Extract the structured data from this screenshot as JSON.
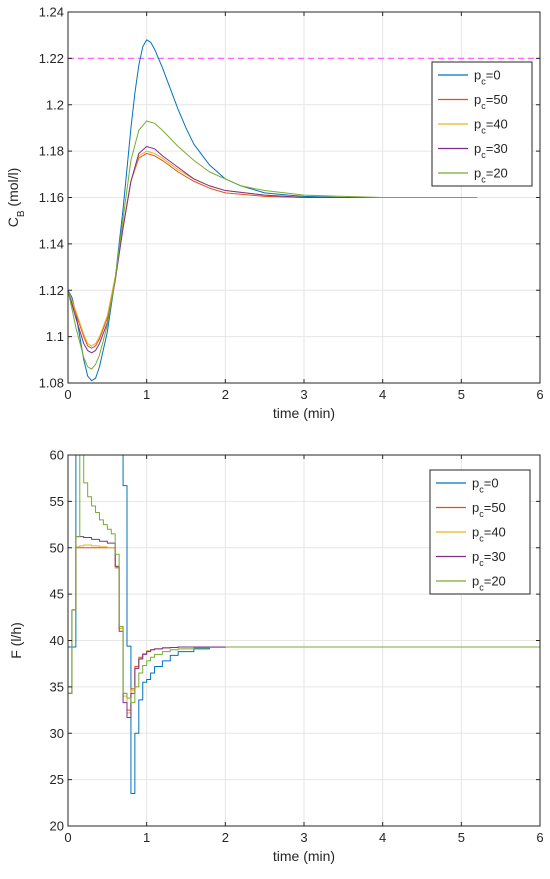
{
  "chart_data": [
    {
      "type": "line",
      "xlabel": "time (min)",
      "ylabel": {
        "base": "C",
        "sub": "B",
        "rest": " (mol/l)"
      },
      "xlim": [
        0,
        6
      ],
      "ylim": [
        1.08,
        1.24
      ],
      "xticks": [
        0,
        1,
        2,
        3,
        4,
        5,
        6
      ],
      "xticklabels": [
        "0",
        "1",
        "2",
        "3",
        "4",
        "5",
        "6"
      ],
      "yticks": [
        1.08,
        1.1,
        1.12,
        1.14,
        1.16,
        1.18,
        1.2,
        1.22,
        1.24
      ],
      "yticklabels": [
        "1.08",
        "1.1",
        "1.12",
        "1.14",
        "1.16",
        "1.18",
        "1.2",
        "1.22",
        "1.24"
      ],
      "grid": true,
      "legend_position": "top-right",
      "reference_line": {
        "y": 1.22,
        "color": "#ff66ff",
        "style": "dashed"
      },
      "series": [
        {
          "name": {
            "base": "p",
            "sub": "c",
            "rest": "=0"
          },
          "color": "#0072bd",
          "x": [
            0,
            0.05,
            0.1,
            0.15,
            0.2,
            0.25,
            0.3,
            0.35,
            0.4,
            0.5,
            0.6,
            0.7,
            0.8,
            0.85,
            0.9,
            0.95,
            1.0,
            1.05,
            1.1,
            1.2,
            1.3,
            1.4,
            1.5,
            1.6,
            1.8,
            2.0,
            2.2,
            2.5,
            2.8,
            3.0,
            3.5,
            4.0,
            4.5,
            5.0,
            5.2
          ],
          "y": [
            1.12,
            1.117,
            1.11,
            1.1,
            1.09,
            1.083,
            1.081,
            1.082,
            1.087,
            1.102,
            1.125,
            1.155,
            1.19,
            1.205,
            1.217,
            1.225,
            1.228,
            1.227,
            1.224,
            1.216,
            1.207,
            1.198,
            1.19,
            1.183,
            1.174,
            1.168,
            1.165,
            1.162,
            1.161,
            1.1605,
            1.16,
            1.16,
            1.16,
            1.16,
            1.16
          ]
        },
        {
          "name": {
            "base": "p",
            "sub": "c",
            "rest": "=50"
          },
          "color": "#d95319",
          "x": [
            0,
            0.1,
            0.2,
            0.25,
            0.3,
            0.35,
            0.4,
            0.5,
            0.6,
            0.7,
            0.8,
            0.9,
            1.0,
            1.1,
            1.2,
            1.4,
            1.6,
            1.8,
            2.0,
            2.5,
            3.0,
            4.0,
            5.0,
            5.2
          ],
          "y": [
            1.12,
            1.11,
            1.1,
            1.096,
            1.095,
            1.096,
            1.099,
            1.108,
            1.125,
            1.147,
            1.167,
            1.177,
            1.179,
            1.178,
            1.176,
            1.171,
            1.167,
            1.164,
            1.162,
            1.1605,
            1.16,
            1.16,
            1.16,
            1.16
          ]
        },
        {
          "name": {
            "base": "p",
            "sub": "c",
            "rest": "=40"
          },
          "color": "#edb120",
          "x": [
            0,
            0.1,
            0.2,
            0.25,
            0.3,
            0.35,
            0.4,
            0.5,
            0.6,
            0.7,
            0.8,
            0.9,
            1.0,
            1.1,
            1.2,
            1.4,
            1.6,
            1.8,
            2.0,
            2.5,
            3.0,
            4.0,
            5.0,
            5.2
          ],
          "y": [
            1.12,
            1.111,
            1.101,
            1.097,
            1.096,
            1.097,
            1.1,
            1.109,
            1.126,
            1.148,
            1.167,
            1.178,
            1.18,
            1.179,
            1.177,
            1.172,
            1.168,
            1.165,
            1.163,
            1.161,
            1.16,
            1.16,
            1.16,
            1.16
          ]
        },
        {
          "name": {
            "base": "p",
            "sub": "c",
            "rest": "=30"
          },
          "color": "#7e2f8e",
          "x": [
            0,
            0.1,
            0.2,
            0.25,
            0.3,
            0.35,
            0.4,
            0.5,
            0.6,
            0.7,
            0.8,
            0.9,
            1.0,
            1.1,
            1.2,
            1.4,
            1.6,
            1.8,
            2.0,
            2.5,
            3.0,
            4.0,
            5.0,
            5.2
          ],
          "y": [
            1.12,
            1.108,
            1.097,
            1.094,
            1.093,
            1.094,
            1.097,
            1.106,
            1.124,
            1.147,
            1.167,
            1.179,
            1.182,
            1.181,
            1.178,
            1.173,
            1.168,
            1.165,
            1.163,
            1.161,
            1.16,
            1.16,
            1.16,
            1.16
          ]
        },
        {
          "name": {
            "base": "p",
            "sub": "c",
            "rest": "=20"
          },
          "color": "#77ac30",
          "x": [
            0,
            0.1,
            0.2,
            0.25,
            0.3,
            0.35,
            0.4,
            0.5,
            0.6,
            0.7,
            0.8,
            0.9,
            1.0,
            1.1,
            1.2,
            1.4,
            1.6,
            1.8,
            2.0,
            2.2,
            2.5,
            3.0,
            3.5,
            4.0,
            5.0,
            5.2
          ],
          "y": [
            1.12,
            1.104,
            1.091,
            1.087,
            1.086,
            1.088,
            1.092,
            1.105,
            1.125,
            1.151,
            1.176,
            1.189,
            1.193,
            1.192,
            1.189,
            1.182,
            1.176,
            1.171,
            1.168,
            1.165,
            1.163,
            1.161,
            1.1605,
            1.16,
            1.16,
            1.16
          ]
        }
      ]
    },
    {
      "type": "line",
      "xlabel": "time (min)",
      "ylabel": {
        "base": "F (l/h)",
        "sub": "",
        "rest": ""
      },
      "xlim": [
        0,
        6
      ],
      "ylim": [
        20,
        60
      ],
      "xticks": [
        0,
        1,
        2,
        3,
        4,
        5,
        6
      ],
      "xticklabels": [
        "0",
        "1",
        "2",
        "3",
        "4",
        "5",
        "6"
      ],
      "yticks": [
        20,
        25,
        30,
        35,
        40,
        45,
        50,
        55,
        60
      ],
      "yticklabels": [
        "20",
        "25",
        "30",
        "35",
        "40",
        "45",
        "50",
        "55",
        "60"
      ],
      "grid": true,
      "legend_position": "top-right",
      "step": true,
      "series": [
        {
          "name": {
            "base": "p",
            "sub": "c",
            "rest": "=0"
          },
          "color": "#0072bd",
          "x": [
            0,
            0.05,
            0.1,
            0.15,
            0.2,
            0.3,
            0.4,
            0.5,
            0.6,
            0.65,
            0.7,
            0.75,
            0.8,
            0.85,
            0.9,
            0.95,
            1.0,
            1.05,
            1.1,
            1.2,
            1.3,
            1.4,
            1.6,
            1.8,
            2.0,
            2.5,
            6.0
          ],
          "y": [
            39.3,
            39.3,
            60,
            60,
            60,
            60,
            60,
            60,
            60,
            60,
            56.7,
            39.4,
            23.5,
            30.0,
            33.6,
            35.5,
            35.8,
            36.5,
            37.2,
            37.8,
            38.4,
            38.8,
            39.1,
            39.25,
            39.3,
            39.3,
            39.3
          ]
        },
        {
          "name": {
            "base": "p",
            "sub": "c",
            "rest": "=50"
          },
          "color": "#d95319",
          "x": [
            0,
            0.05,
            0.1,
            0.15,
            0.2,
            0.3,
            0.4,
            0.5,
            0.6,
            0.65,
            0.7,
            0.75,
            0.8,
            0.85,
            0.9,
            0.95,
            1.0,
            1.05,
            1.1,
            1.2,
            1.3,
            1.4,
            1.6,
            1.8,
            2.0,
            2.5,
            6.0
          ],
          "y": [
            34.3,
            43.3,
            50.0,
            50.0,
            50.0,
            50.0,
            50.0,
            50.0,
            47.9,
            41.5,
            34.3,
            32.5,
            34.8,
            37.2,
            38.2,
            38.6,
            38.9,
            39.0,
            39.1,
            39.2,
            39.25,
            39.3,
            39.3,
            39.3,
            39.3,
            39.3,
            39.3
          ]
        },
        {
          "name": {
            "base": "p",
            "sub": "c",
            "rest": "=40"
          },
          "color": "#edb120",
          "x": [
            0,
            0.05,
            0.1,
            0.15,
            0.2,
            0.3,
            0.4,
            0.5,
            0.6,
            0.65,
            0.7,
            0.75,
            0.8,
            0.85,
            0.9,
            0.95,
            1.0,
            1.05,
            1.1,
            1.2,
            1.3,
            1.4,
            1.6,
            1.8,
            2.0,
            2.5,
            6.0
          ],
          "y": [
            34.3,
            43.3,
            50.1,
            50.2,
            50.3,
            50.2,
            50.1,
            50.0,
            47.8,
            41.3,
            34.0,
            32.2,
            34.6,
            37.0,
            38.1,
            38.6,
            38.9,
            39.0,
            39.1,
            39.2,
            39.25,
            39.3,
            39.3,
            39.3,
            39.3,
            39.3,
            39.3
          ]
        },
        {
          "name": {
            "base": "p",
            "sub": "c",
            "rest": "=30"
          },
          "color": "#7e2f8e",
          "x": [
            0,
            0.05,
            0.1,
            0.15,
            0.2,
            0.3,
            0.4,
            0.5,
            0.6,
            0.65,
            0.7,
            0.75,
            0.8,
            0.85,
            0.9,
            0.95,
            1.0,
            1.05,
            1.1,
            1.2,
            1.3,
            1.4,
            1.6,
            1.8,
            2.0,
            2.5,
            6.0
          ],
          "y": [
            34.3,
            43.3,
            51.2,
            51.2,
            51.1,
            50.9,
            50.7,
            50.5,
            48.0,
            41.0,
            33.3,
            31.7,
            34.3,
            37.0,
            38.0,
            38.5,
            38.8,
            39.0,
            39.1,
            39.2,
            39.25,
            39.3,
            39.3,
            39.3,
            39.3,
            39.3,
            39.3
          ]
        },
        {
          "name": {
            "base": "p",
            "sub": "c",
            "rest": "=20"
          },
          "color": "#77ac30",
          "x": [
            0,
            0.05,
            0.1,
            0.15,
            0.2,
            0.25,
            0.3,
            0.35,
            0.4,
            0.45,
            0.5,
            0.55,
            0.6,
            0.65,
            0.7,
            0.75,
            0.8,
            0.85,
            0.9,
            0.95,
            1.0,
            1.05,
            1.1,
            1.2,
            1.3,
            1.4,
            1.6,
            1.8,
            2.0,
            2.5,
            6.0
          ],
          "y": [
            34.3,
            43.3,
            51.2,
            60.0,
            57.0,
            55.5,
            54.5,
            53.8,
            53.0,
            52.5,
            52.0,
            51.5,
            49.3,
            41.5,
            34.3,
            33.8,
            33.3,
            35.0,
            36.5,
            37.3,
            37.8,
            38.2,
            38.5,
            38.8,
            39.0,
            39.1,
            39.2,
            39.25,
            39.3,
            39.3,
            39.3
          ]
        }
      ]
    }
  ]
}
